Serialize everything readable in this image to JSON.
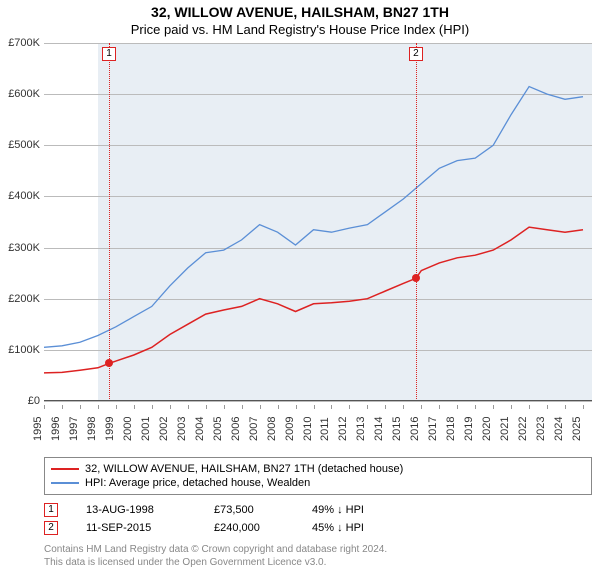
{
  "title": "32, WILLOW AVENUE, HAILSHAM, BN27 1TH",
  "subtitle": "Price paid vs. HM Land Registry's House Price Index (HPI)",
  "chart": {
    "type": "line",
    "x_range": [
      1995,
      2025.5
    ],
    "y_range": [
      0,
      700000
    ],
    "y_ticks": [
      0,
      100000,
      200000,
      300000,
      400000,
      500000,
      600000,
      700000
    ],
    "y_labels": [
      "£0",
      "£100K",
      "£200K",
      "£300K",
      "£400K",
      "£500K",
      "£600K",
      "£700K"
    ],
    "x_ticks": [
      1995,
      1996,
      1997,
      1998,
      1999,
      2000,
      2001,
      2002,
      2003,
      2004,
      2005,
      2006,
      2007,
      2008,
      2009,
      2010,
      2011,
      2012,
      2013,
      2014,
      2015,
      2016,
      2017,
      2018,
      2019,
      2020,
      2021,
      2022,
      2023,
      2024,
      2025
    ],
    "shade_band": [
      1998,
      2025.5
    ],
    "grid_color": "#bbbbbb",
    "background_color": "#ffffff",
    "shade_color": "#e8eef4",
    "axis_fontsize": 11,
    "vlines": [
      {
        "x": 1998.62,
        "color": "#d22",
        "label": "1"
      },
      {
        "x": 2015.7,
        "color": "#d22",
        "label": "2"
      }
    ],
    "points": [
      {
        "x": 1998.62,
        "y": 73500,
        "color": "#d22"
      },
      {
        "x": 2015.7,
        "y": 240000,
        "color": "#d22"
      }
    ],
    "series": [
      {
        "name": "32, WILLOW AVENUE, HAILSHAM, BN27 1TH (detached house)",
        "color": "#d22",
        "width": 1.5,
        "data": [
          [
            1995,
            55000
          ],
          [
            1996,
            56000
          ],
          [
            1997,
            60000
          ],
          [
            1998,
            65000
          ],
          [
            1998.62,
            73500
          ],
          [
            1999,
            78000
          ],
          [
            2000,
            90000
          ],
          [
            2001,
            105000
          ],
          [
            2002,
            130000
          ],
          [
            2003,
            150000
          ],
          [
            2004,
            170000
          ],
          [
            2005,
            178000
          ],
          [
            2006,
            185000
          ],
          [
            2007,
            200000
          ],
          [
            2008,
            190000
          ],
          [
            2009,
            175000
          ],
          [
            2010,
            190000
          ],
          [
            2011,
            192000
          ],
          [
            2012,
            195000
          ],
          [
            2013,
            200000
          ],
          [
            2014,
            215000
          ],
          [
            2015,
            230000
          ],
          [
            2015.7,
            240000
          ],
          [
            2016,
            255000
          ],
          [
            2017,
            270000
          ],
          [
            2018,
            280000
          ],
          [
            2019,
            285000
          ],
          [
            2020,
            295000
          ],
          [
            2021,
            315000
          ],
          [
            2022,
            340000
          ],
          [
            2023,
            335000
          ],
          [
            2024,
            330000
          ],
          [
            2025,
            335000
          ]
        ]
      },
      {
        "name": "HPI: Average price, detached house, Wealden",
        "color": "#5b8fd6",
        "width": 1.3,
        "data": [
          [
            1995,
            105000
          ],
          [
            1996,
            108000
          ],
          [
            1997,
            115000
          ],
          [
            1998,
            128000
          ],
          [
            1999,
            145000
          ],
          [
            2000,
            165000
          ],
          [
            2001,
            185000
          ],
          [
            2002,
            225000
          ],
          [
            2003,
            260000
          ],
          [
            2004,
            290000
          ],
          [
            2005,
            295000
          ],
          [
            2006,
            315000
          ],
          [
            2007,
            345000
          ],
          [
            2008,
            330000
          ],
          [
            2009,
            305000
          ],
          [
            2010,
            335000
          ],
          [
            2011,
            330000
          ],
          [
            2012,
            338000
          ],
          [
            2013,
            345000
          ],
          [
            2014,
            370000
          ],
          [
            2015,
            395000
          ],
          [
            2016,
            425000
          ],
          [
            2017,
            455000
          ],
          [
            2018,
            470000
          ],
          [
            2019,
            475000
          ],
          [
            2020,
            500000
          ],
          [
            2021,
            560000
          ],
          [
            2022,
            615000
          ],
          [
            2023,
            600000
          ],
          [
            2024,
            590000
          ],
          [
            2025,
            595000
          ]
        ]
      }
    ]
  },
  "legend": {
    "s0": "32, WILLOW AVENUE, HAILSHAM, BN27 1TH (detached house)",
    "s1": "HPI: Average price, detached house, Wealden"
  },
  "transactions": [
    {
      "idx": "1",
      "date": "13-AUG-1998",
      "price": "£73,500",
      "pct": "49% ↓ HPI",
      "color": "#d22"
    },
    {
      "idx": "2",
      "date": "11-SEP-2015",
      "price": "£240,000",
      "pct": "45% ↓ HPI",
      "color": "#d22"
    }
  ],
  "footer_line1": "Contains HM Land Registry data © Crown copyright and database right 2024.",
  "footer_line2": "This data is licensed under the Open Government Licence v3.0."
}
